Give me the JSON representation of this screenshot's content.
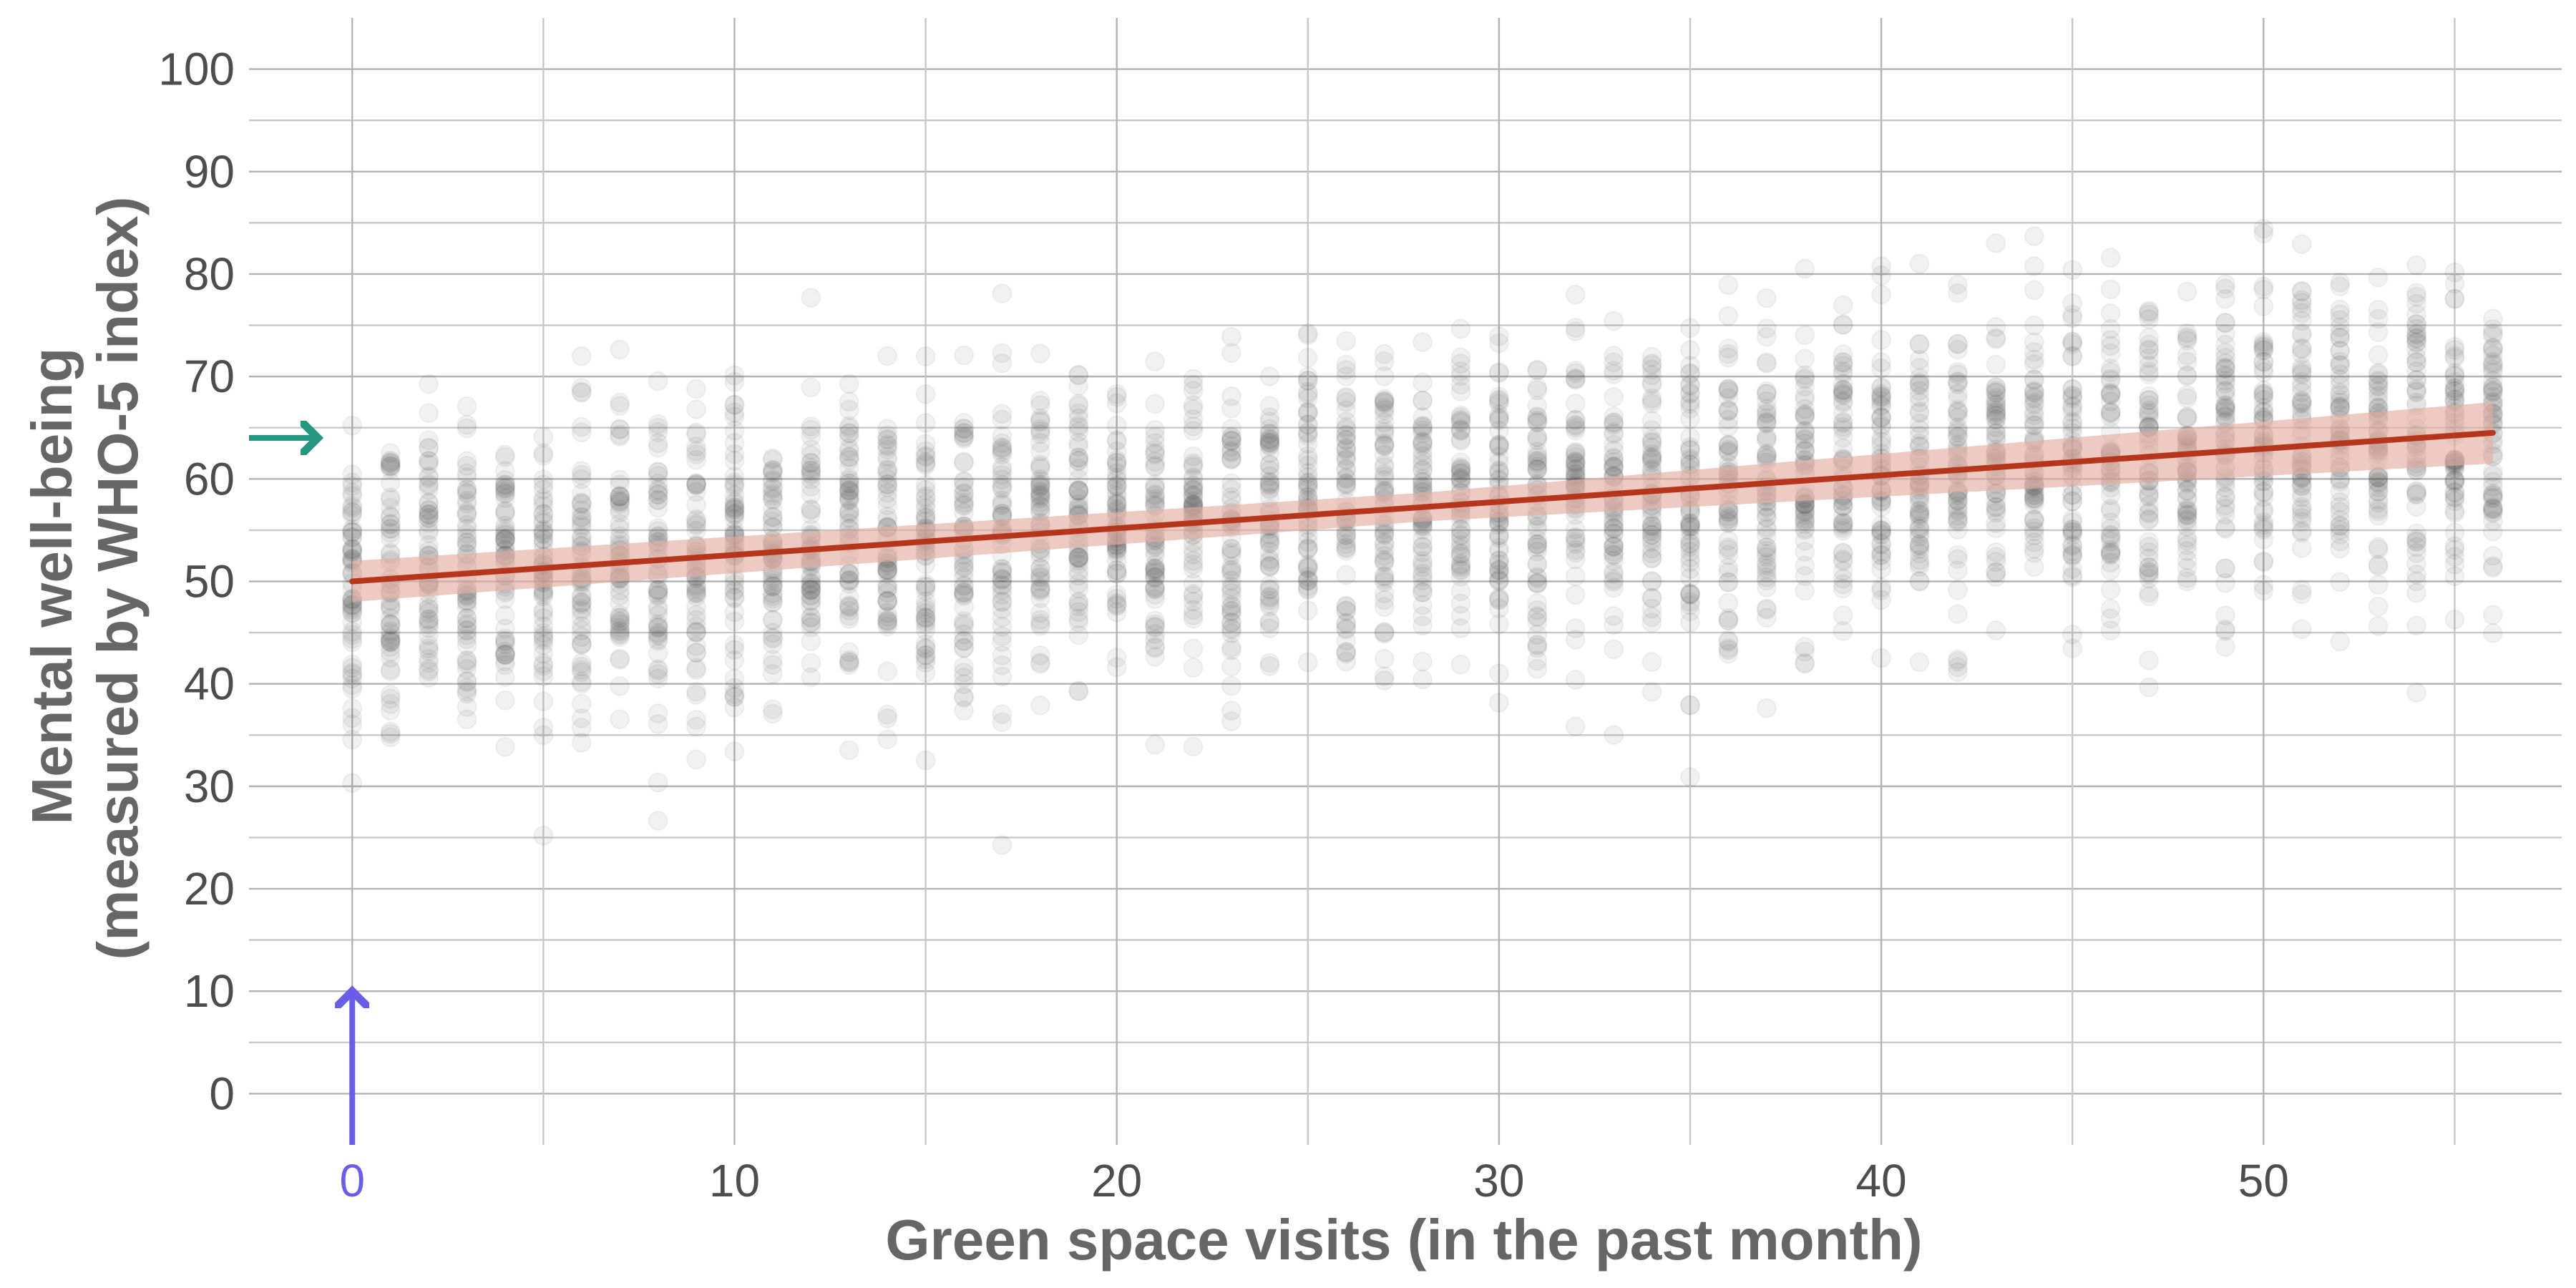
{
  "chart_data": {
    "type": "scatter",
    "xlabel": "Green space visits (in the past month)",
    "ylabel_lines": [
      "Mental well-being",
      "(measured by WHO-5 index)"
    ],
    "x_ticks": [
      0,
      10,
      20,
      30,
      40,
      50
    ],
    "y_ticks": [
      0,
      10,
      20,
      30,
      40,
      50,
      60,
      70,
      80,
      90,
      100
    ],
    "x_minor_ticks": [
      5,
      15,
      25,
      35,
      45,
      55
    ],
    "y_minor_ticks": [
      5,
      15,
      25,
      35,
      45,
      55,
      65,
      75,
      85,
      95
    ],
    "xlim": [
      -2.7,
      57.8
    ],
    "ylim": [
      -5,
      105
    ],
    "grid": true,
    "points": {
      "x_values": [
        0,
        1,
        2,
        3,
        4,
        5,
        6,
        7,
        8,
        9,
        10,
        11,
        12,
        13,
        14,
        15,
        16,
        17,
        18,
        19,
        20,
        21,
        22,
        23,
        24,
        25,
        26,
        27,
        28,
        29,
        30,
        31,
        32,
        33,
        34,
        35,
        36,
        37,
        38,
        39,
        40,
        41,
        42,
        43,
        44,
        45,
        46,
        47,
        48,
        49,
        50,
        51,
        52,
        53,
        54,
        55,
        56
      ],
      "y_center_intercept": 50.0,
      "y_center_slope": 0.26,
      "y_sd": 7.5,
      "per_x_count": 60,
      "color": "#4d4d4d",
      "opacity": 0.08
    },
    "regression": {
      "x_range": [
        0,
        56
      ],
      "y_at_start": 50.0,
      "y_at_end": 64.5,
      "band_half_width_start": 2.0,
      "band_half_width_mid": 1.4,
      "band_half_width_end": 3.0,
      "line_color": "#b5361c",
      "band_color": "#e3ada2"
    },
    "annotations": [
      {
        "name": "intercept-arrow",
        "color": "#6a5de6",
        "direction": "up",
        "x": 0,
        "y_from": -5,
        "y_to": 10
      },
      {
        "name": "predicted-value-arrow",
        "color": "#23977f",
        "direction": "right",
        "y": 64,
        "x_from": -2.7,
        "x_to": -0.9
      }
    ],
    "highlighted_tick": {
      "x": 0,
      "color": "#6a5de6"
    }
  }
}
